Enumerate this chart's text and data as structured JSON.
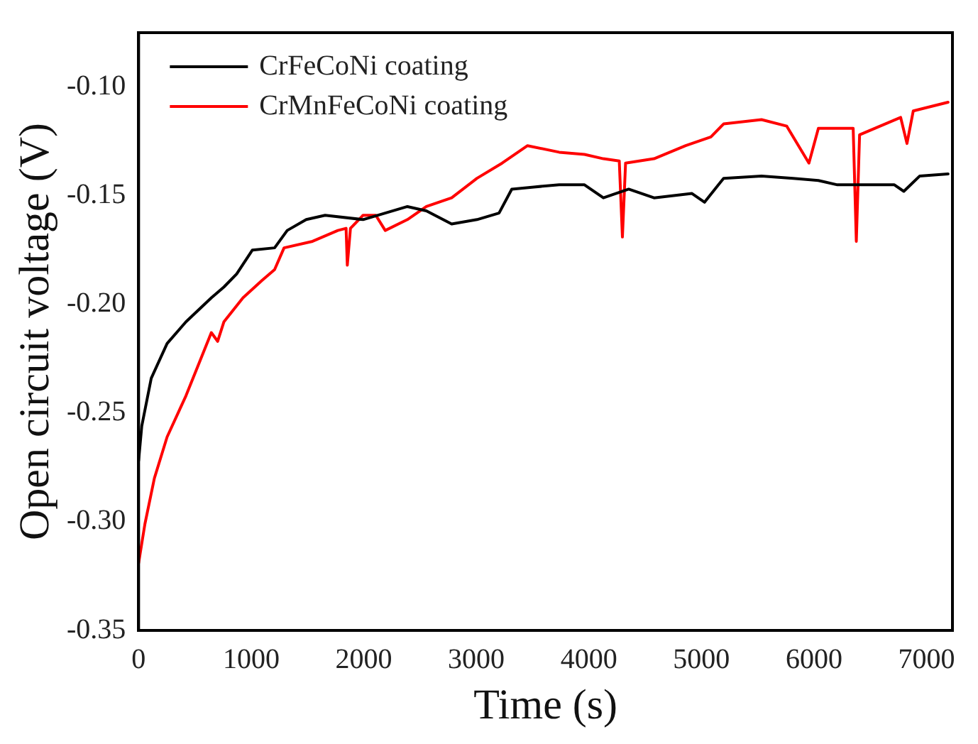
{
  "chart_data": {
    "type": "line",
    "xlabel": "Time (s)",
    "ylabel": "Open circuit voltage (V)",
    "xlim": [
      0,
      7230
    ],
    "ylim": [
      -0.35,
      -0.075
    ],
    "xticks": [
      0,
      1000,
      2000,
      3000,
      4000,
      5000,
      6000,
      7000
    ],
    "yticks": [
      {
        "value": -0.35,
        "label": "-0.35"
      },
      {
        "value": -0.3,
        "label": "-0.30"
      },
      {
        "value": -0.25,
        "label": "-0.25"
      },
      {
        "value": -0.2,
        "label": "-0.20"
      },
      {
        "value": -0.15,
        "label": "-0.15"
      },
      {
        "value": -0.1,
        "label": "-0.10"
      }
    ],
    "grid": false,
    "legend": "top left",
    "marker": "none",
    "line_style": "solid",
    "series": [
      {
        "name": "CrFeCoNi coating",
        "color": "#000000",
        "x": [
          0,
          28,
          112,
          253,
          421,
          646,
          758,
          871,
          1011,
          1208,
          1320,
          1489,
          1657,
          1994,
          2388,
          2556,
          2781,
          3006,
          3202,
          3315,
          3511,
          3736,
          3961,
          4129,
          4354,
          4579,
          4916,
          5028,
          5197,
          5534,
          5815,
          6039,
          6208,
          6489,
          6714,
          6798,
          6938,
          7191
        ],
        "values": [
          -0.272,
          -0.256,
          -0.234,
          -0.218,
          -0.208,
          -0.197,
          -0.192,
          -0.186,
          -0.175,
          -0.174,
          -0.166,
          -0.161,
          -0.159,
          -0.161,
          -0.155,
          -0.157,
          -0.163,
          -0.161,
          -0.158,
          -0.147,
          -0.146,
          -0.145,
          -0.145,
          -0.151,
          -0.147,
          -0.151,
          -0.149,
          -0.153,
          -0.142,
          -0.141,
          -0.142,
          -0.143,
          -0.145,
          -0.145,
          -0.145,
          -0.148,
          -0.141,
          -0.14
        ]
      },
      {
        "name": "CrMnFeCoNi coating",
        "color": "#ff0000",
        "x": [
          0,
          56,
          140,
          253,
          421,
          646,
          702,
          758,
          927,
          1096,
          1208,
          1292,
          1545,
          1770,
          1843,
          1854,
          1882,
          1994,
          2107,
          2191,
          2388,
          2556,
          2781,
          3006,
          3230,
          3455,
          3736,
          3961,
          4129,
          4270,
          4298,
          4326,
          4579,
          4860,
          5084,
          5197,
          5534,
          5758,
          5955,
          6039,
          6348,
          6376,
          6405,
          6770,
          6826,
          6882,
          7191
        ],
        "values": [
          -0.319,
          -0.301,
          -0.28,
          -0.261,
          -0.242,
          -0.213,
          -0.217,
          -0.208,
          -0.197,
          -0.189,
          -0.184,
          -0.174,
          -0.171,
          -0.166,
          -0.165,
          -0.182,
          -0.165,
          -0.159,
          -0.159,
          -0.166,
          -0.161,
          -0.155,
          -0.151,
          -0.142,
          -0.135,
          -0.127,
          -0.13,
          -0.131,
          -0.133,
          -0.134,
          -0.169,
          -0.135,
          -0.133,
          -0.127,
          -0.123,
          -0.117,
          -0.115,
          -0.118,
          -0.135,
          -0.119,
          -0.119,
          -0.171,
          -0.122,
          -0.114,
          -0.126,
          -0.111,
          -0.107
        ]
      }
    ]
  }
}
